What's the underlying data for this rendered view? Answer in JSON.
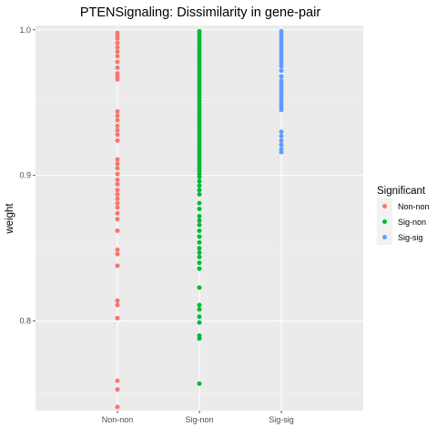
{
  "chart_data": {
    "type": "scatter",
    "title": "PTENSignaling: Dissimilarity in gene-pair",
    "xlabel": "",
    "ylabel": "weight",
    "categories": [
      "Non-non",
      "Sig-non",
      "Sig-sig"
    ],
    "ylim": [
      0.7385,
      1.003
    ],
    "yticks": [
      0.8,
      0.9,
      1.0
    ],
    "ytick_labels": [
      "0.8",
      "0.9",
      "1.0"
    ],
    "grid": true,
    "legend_title": "Significant",
    "legend_position": "right",
    "series": [
      {
        "name": "Non-non",
        "color": "#F8766D",
        "category": "Non-non",
        "values": [
          0.998,
          0.996,
          0.994,
          0.991,
          0.988,
          0.985,
          0.982,
          0.978,
          0.974,
          0.97,
          0.968,
          0.966,
          0.944,
          0.941,
          0.938,
          0.934,
          0.931,
          0.928,
          0.924,
          0.911,
          0.908,
          0.905,
          0.901,
          0.897,
          0.894,
          0.89,
          0.887,
          0.884,
          0.881,
          0.878,
          0.874,
          0.87,
          0.862,
          0.849,
          0.846,
          0.838,
          0.814,
          0.811,
          0.802,
          0.759,
          0.753,
          0.741
        ]
      },
      {
        "name": "Sig-non",
        "color": "#00BA38",
        "category": "Sig-non",
        "values": [
          0.999,
          0.997,
          0.995,
          0.993,
          0.991,
          0.989,
          0.987,
          0.985,
          0.983,
          0.981,
          0.979,
          0.977,
          0.975,
          0.973,
          0.971,
          0.969,
          0.967,
          0.965,
          0.963,
          0.961,
          0.959,
          0.957,
          0.955,
          0.953,
          0.951,
          0.949,
          0.947,
          0.945,
          0.943,
          0.941,
          0.939,
          0.937,
          0.935,
          0.933,
          0.931,
          0.929,
          0.927,
          0.925,
          0.923,
          0.921,
          0.919,
          0.917,
          0.915,
          0.913,
          0.911,
          0.909,
          0.907,
          0.905,
          0.903,
          0.901,
          0.899,
          0.896,
          0.893,
          0.89,
          0.887,
          0.881,
          0.877,
          0.872,
          0.869,
          0.866,
          0.862,
          0.858,
          0.854,
          0.85,
          0.847,
          0.844,
          0.84,
          0.836,
          0.823,
          0.811,
          0.808,
          0.803,
          0.799,
          0.79,
          0.788,
          0.757
        ]
      },
      {
        "name": "Sig-sig",
        "color": "#619CFF",
        "category": "Sig-sig",
        "values": [
          0.999,
          0.997,
          0.995,
          0.993,
          0.991,
          0.989,
          0.987,
          0.985,
          0.983,
          0.981,
          0.979,
          0.977,
          0.975,
          0.972,
          0.968,
          0.965,
          0.963,
          0.961,
          0.959,
          0.957,
          0.955,
          0.953,
          0.951,
          0.949,
          0.947,
          0.945,
          0.93,
          0.927,
          0.924,
          0.921,
          0.918,
          0.916
        ]
      }
    ]
  }
}
